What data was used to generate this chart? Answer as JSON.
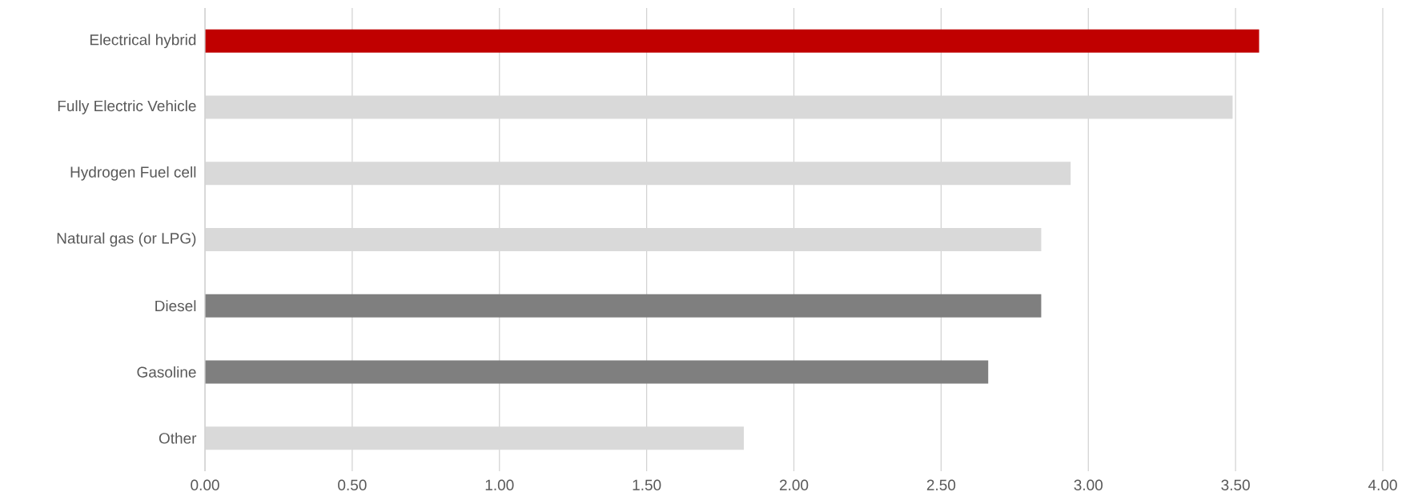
{
  "chart_data": {
    "type": "bar",
    "orientation": "horizontal",
    "categories": [
      "Electrical hybrid",
      "Fully Electric Vehicle",
      "Hydrogen Fuel cell",
      "Natural gas (or LPG)",
      "Diesel",
      "Gasoline",
      "Other"
    ],
    "values": [
      3.58,
      3.49,
      2.94,
      2.84,
      2.84,
      2.66,
      1.83
    ],
    "colors": [
      "#c00000",
      "#d9d9d9",
      "#d9d9d9",
      "#d9d9d9",
      "#7f7f7f",
      "#7f7f7f",
      "#d9d9d9"
    ],
    "xlim": [
      0,
      4
    ],
    "xticks": [
      {
        "value": 0,
        "label": "0.00"
      },
      {
        "value": 0.5,
        "label": "0.50"
      },
      {
        "value": 1,
        "label": "1.00"
      },
      {
        "value": 1.5,
        "label": "1.50"
      },
      {
        "value": 2,
        "label": "2.00"
      },
      {
        "value": 2.5,
        "label": "2.50"
      },
      {
        "value": 3,
        "label": "3.00"
      },
      {
        "value": 3.5,
        "label": "3.50"
      },
      {
        "value": 4,
        "label": "4.00"
      }
    ],
    "grid": "x"
  }
}
